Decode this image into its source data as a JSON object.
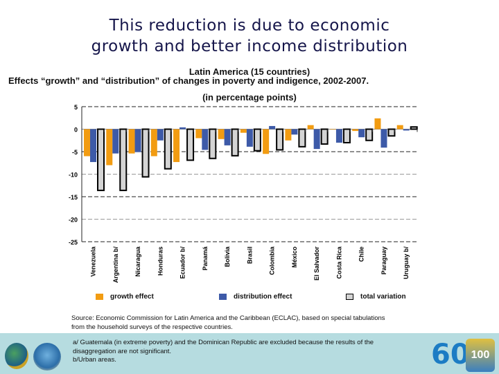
{
  "slide": {
    "title_line1": "This reduction is due to economic",
    "title_line2": "growth and better income distribution"
  },
  "chart_data": {
    "type": "bar",
    "title": "Latin America (15 countries)",
    "subtitle": "Effects  “growth” and “distribution” of changes in poverty and indigence, 2002-2007.",
    "unit_label": "(in percentage points)",
    "xlabel": "",
    "ylabel": "",
    "ylim": [
      -25,
      5
    ],
    "yticks": [
      5,
      0,
      -5,
      -10,
      -15,
      -20,
      -25
    ],
    "grid": true,
    "legend_position": "bottom",
    "categories": [
      "Venezuela",
      "Argentina b/",
      "Nicaragua",
      "Honduras",
      "Ecuador b/",
      "Panamá",
      "Bolivia",
      "Brasil",
      "Colombia",
      "México",
      "El Salvador",
      "Costa Rica",
      "Chile",
      "Paraguay",
      "Uruguay b/"
    ],
    "series": [
      {
        "name": "growth effect",
        "color": "#f29c12",
        "values": [
          -6.0,
          -8.0,
          -5.4,
          -6.0,
          -7.3,
          -2.0,
          -2.2,
          -0.8,
          -5.5,
          -2.5,
          0.9,
          -0.1,
          -0.4,
          2.4,
          0.9
        ]
      },
      {
        "name": "distribution effect",
        "color": "#3d5aa8",
        "values": [
          -7.3,
          -5.4,
          -5.1,
          -2.5,
          0.4,
          -4.6,
          -3.6,
          -3.9,
          0.7,
          -1.2,
          -4.4,
          -3.0,
          -1.8,
          -4.1,
          -0.3
        ]
      },
      {
        "name": "total variation",
        "color": "#d4d4d4",
        "values": [
          -13.6,
          -13.6,
          -10.6,
          -8.8,
          -6.9,
          -6.5,
          -5.9,
          -4.8,
          -4.6,
          -3.9,
          -3.3,
          -3.0,
          -2.5,
          -1.5,
          0.5
        ]
      }
    ]
  },
  "source": {
    "line1": "Source: Economic Commission for Latin America and the Caribbean (ECLAC), based on  special tabulations",
    "line2": "from the household surveys of the respective countries."
  },
  "notes": {
    "a": "a/ Guatemala (in extreme poverty) and the Dominican Republic are excluded because the results of the",
    "a2": "disaggregation are not significant.",
    "b": " b/Urban areas."
  },
  "logos": {
    "right_60": "60",
    "right_anniversary": "100"
  }
}
